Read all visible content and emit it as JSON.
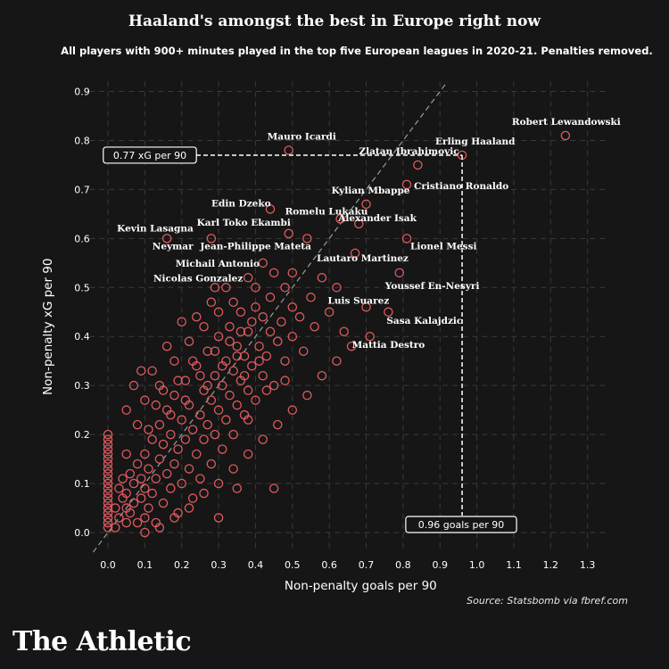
{
  "header": {
    "title": "Haaland's amongst the best in Europe right now",
    "subtitle": "All players with 900+ minutes played in the top five European leagues in 2020-21. Penalties removed."
  },
  "footer": {
    "source": "Source: Statsbomb via fbref.com",
    "brand": "The Athletic"
  },
  "colors": {
    "background": "#161616",
    "marker": "#e05a5f",
    "text": "#ffffff"
  },
  "chart_data": {
    "type": "scatter",
    "title": "Haaland's amongst the best in Europe right now",
    "xlabel": "Non-penalty goals per 90",
    "ylabel": "Non-penalty xG per 90",
    "xlim": [
      -0.05,
      1.35
    ],
    "ylim": [
      -0.04,
      0.92
    ],
    "xticks": [
      "0.0",
      "0.1",
      "0.2",
      "0.3",
      "0.4",
      "0.5",
      "0.6",
      "0.7",
      "0.8",
      "0.9",
      "1.0",
      "1.1",
      "1.2",
      "1.3"
    ],
    "yticks": [
      "0.0",
      "0.1",
      "0.2",
      "0.3",
      "0.4",
      "0.5",
      "0.6",
      "0.7",
      "0.8",
      "0.9"
    ],
    "grid": true,
    "reference_line": "y = x",
    "annotations": [
      {
        "text": "0.77 xG per 90",
        "x": 0.96,
        "y": 0.77,
        "kind": "horizontal"
      },
      {
        "text": "0.96 goals per 90",
        "x": 0.96,
        "y": 0.77,
        "kind": "vertical"
      }
    ],
    "labeled_players": [
      {
        "name": "Robert Lewandowski",
        "x": 1.24,
        "y": 0.81
      },
      {
        "name": "Erling Haaland",
        "x": 0.96,
        "y": 0.77
      },
      {
        "name": "Mauro Icardi",
        "x": 0.49,
        "y": 0.78
      },
      {
        "name": "Zlatan Ibrahimovic",
        "x": 0.84,
        "y": 0.75
      },
      {
        "name": "Cristiano Ronaldo",
        "x": 0.81,
        "y": 0.71
      },
      {
        "name": "Kylian Mbappe",
        "x": 0.7,
        "y": 0.67
      },
      {
        "name": "Edin Dzeko",
        "x": 0.44,
        "y": 0.66
      },
      {
        "name": "Romelu Lukaku",
        "x": 0.63,
        "y": 0.64
      },
      {
        "name": "Karl Toko Ekambi",
        "x": 0.49,
        "y": 0.61
      },
      {
        "name": "Alexander Isak",
        "x": 0.68,
        "y": 0.63
      },
      {
        "name": "Kevin Lasagna",
        "x": 0.16,
        "y": 0.6
      },
      {
        "name": "Neymar",
        "x": 0.28,
        "y": 0.6
      },
      {
        "name": "Jean-Philippe Mateta",
        "x": 0.54,
        "y": 0.6
      },
      {
        "name": "Lionel Messi",
        "x": 0.81,
        "y": 0.6
      },
      {
        "name": "Michail Antonio",
        "x": 0.42,
        "y": 0.55
      },
      {
        "name": "Lautaro Martinez",
        "x": 0.67,
        "y": 0.57
      },
      {
        "name": "Nicolas Gonzalez",
        "x": 0.29,
        "y": 0.5
      },
      {
        "name": "Youssef En-Nesyri",
        "x": 0.79,
        "y": 0.53
      },
      {
        "name": "Luis Suarez",
        "x": 0.7,
        "y": 0.46
      },
      {
        "name": "Sasa Kalajdzic",
        "x": 0.76,
        "y": 0.45
      },
      {
        "name": "Mattia Destro",
        "x": 0.71,
        "y": 0.4
      }
    ],
    "series": [
      {
        "values": [
          [
            0.0,
            0.01
          ],
          [
            0.0,
            0.02
          ],
          [
            0.0,
            0.03
          ],
          [
            0.0,
            0.04
          ],
          [
            0.0,
            0.05
          ],
          [
            0.0,
            0.06
          ],
          [
            0.0,
            0.07
          ],
          [
            0.0,
            0.08
          ],
          [
            0.0,
            0.09
          ],
          [
            0.0,
            0.1
          ],
          [
            0.0,
            0.11
          ],
          [
            0.0,
            0.12
          ],
          [
            0.0,
            0.13
          ],
          [
            0.0,
            0.14
          ],
          [
            0.0,
            0.15
          ],
          [
            0.0,
            0.16
          ],
          [
            0.0,
            0.17
          ],
          [
            0.0,
            0.18
          ],
          [
            0.0,
            0.19
          ],
          [
            0.0,
            0.2
          ],
          [
            0.02,
            0.01
          ],
          [
            0.03,
            0.03
          ],
          [
            0.02,
            0.05
          ],
          [
            0.04,
            0.07
          ],
          [
            0.03,
            0.09
          ],
          [
            0.04,
            0.11
          ],
          [
            0.05,
            0.02
          ],
          [
            0.05,
            0.05
          ],
          [
            0.05,
            0.08
          ],
          [
            0.06,
            0.12
          ],
          [
            0.06,
            0.04
          ],
          [
            0.07,
            0.06
          ],
          [
            0.07,
            0.1
          ],
          [
            0.08,
            0.02
          ],
          [
            0.08,
            0.14
          ],
          [
            0.09,
            0.07
          ],
          [
            0.09,
            0.11
          ],
          [
            0.1,
            0.03
          ],
          [
            0.1,
            0.16
          ],
          [
            0.1,
            0.09
          ],
          [
            0.11,
            0.05
          ],
          [
            0.11,
            0.13
          ],
          [
            0.12,
            0.19
          ],
          [
            0.12,
            0.08
          ],
          [
            0.13,
            0.11
          ],
          [
            0.13,
            0.02
          ],
          [
            0.14,
            0.15
          ],
          [
            0.14,
            0.22
          ],
          [
            0.15,
            0.06
          ],
          [
            0.15,
            0.18
          ],
          [
            0.16,
            0.12
          ],
          [
            0.16,
            0.25
          ],
          [
            0.17,
            0.09
          ],
          [
            0.17,
            0.2
          ],
          [
            0.18,
            0.14
          ],
          [
            0.18,
            0.28
          ],
          [
            0.19,
            0.04
          ],
          [
            0.19,
            0.17
          ],
          [
            0.2,
            0.23
          ],
          [
            0.2,
            0.1
          ],
          [
            0.21,
            0.19
          ],
          [
            0.21,
            0.31
          ],
          [
            0.22,
            0.13
          ],
          [
            0.22,
            0.26
          ],
          [
            0.23,
            0.07
          ],
          [
            0.23,
            0.21
          ],
          [
            0.24,
            0.16
          ],
          [
            0.24,
            0.34
          ],
          [
            0.25,
            0.24
          ],
          [
            0.25,
            0.11
          ],
          [
            0.26,
            0.29
          ],
          [
            0.26,
            0.19
          ],
          [
            0.27,
            0.22
          ],
          [
            0.27,
            0.37
          ],
          [
            0.28,
            0.14
          ],
          [
            0.28,
            0.27
          ],
          [
            0.29,
            0.32
          ],
          [
            0.29,
            0.2
          ],
          [
            0.3,
            0.25
          ],
          [
            0.3,
            0.4
          ],
          [
            0.31,
            0.17
          ],
          [
            0.31,
            0.3
          ],
          [
            0.32,
            0.35
          ],
          [
            0.32,
            0.23
          ],
          [
            0.33,
            0.28
          ],
          [
            0.33,
            0.42
          ],
          [
            0.34,
            0.2
          ],
          [
            0.34,
            0.33
          ],
          [
            0.35,
            0.26
          ],
          [
            0.35,
            0.38
          ],
          [
            0.36,
            0.31
          ],
          [
            0.36,
            0.45
          ],
          [
            0.37,
            0.24
          ],
          [
            0.37,
            0.36
          ],
          [
            0.38,
            0.41
          ],
          [
            0.38,
            0.29
          ],
          [
            0.39,
            0.34
          ],
          [
            0.4,
            0.46
          ],
          [
            0.4,
            0.27
          ],
          [
            0.41,
            0.38
          ],
          [
            0.42,
            0.32
          ],
          [
            0.42,
            0.44
          ],
          [
            0.43,
            0.36
          ],
          [
            0.44,
            0.41
          ],
          [
            0.44,
            0.48
          ],
          [
            0.45,
            0.3
          ],
          [
            0.46,
            0.39
          ],
          [
            0.47,
            0.43
          ],
          [
            0.48,
            0.35
          ],
          [
            0.48,
            0.5
          ],
          [
            0.5,
            0.4
          ],
          [
            0.5,
            0.46
          ],
          [
            0.52,
            0.44
          ],
          [
            0.53,
            0.37
          ],
          [
            0.55,
            0.48
          ],
          [
            0.56,
            0.42
          ],
          [
            0.58,
            0.52
          ],
          [
            0.6,
            0.45
          ],
          [
            0.62,
            0.5
          ],
          [
            0.64,
            0.41
          ],
          [
            0.05,
            0.16
          ],
          [
            0.08,
            0.22
          ],
          [
            0.1,
            0.27
          ],
          [
            0.12,
            0.33
          ],
          [
            0.14,
            0.3
          ],
          [
            0.16,
            0.38
          ],
          [
            0.18,
            0.35
          ],
          [
            0.2,
            0.43
          ],
          [
            0.22,
            0.39
          ],
          [
            0.24,
            0.44
          ],
          [
            0.26,
            0.42
          ],
          [
            0.28,
            0.47
          ],
          [
            0.3,
            0.45
          ],
          [
            0.32,
            0.5
          ],
          [
            0.34,
            0.47
          ],
          [
            0.36,
            0.41
          ],
          [
            0.38,
            0.52
          ],
          [
            0.4,
            0.5
          ],
          [
            0.45,
            0.53
          ],
          [
            0.5,
            0.53
          ],
          [
            0.1,
            0.0
          ],
          [
            0.14,
            0.01
          ],
          [
            0.18,
            0.03
          ],
          [
            0.22,
            0.05
          ],
          [
            0.26,
            0.08
          ],
          [
            0.3,
            0.1
          ],
          [
            0.34,
            0.13
          ],
          [
            0.38,
            0.16
          ],
          [
            0.42,
            0.19
          ],
          [
            0.46,
            0.22
          ],
          [
            0.5,
            0.25
          ],
          [
            0.54,
            0.28
          ],
          [
            0.58,
            0.32
          ],
          [
            0.62,
            0.35
          ],
          [
            0.66,
            0.38
          ],
          [
            0.45,
            0.09
          ],
          [
            0.35,
            0.09
          ],
          [
            0.3,
            0.03
          ],
          [
            0.38,
            0.23
          ],
          [
            0.48,
            0.31
          ],
          [
            0.05,
            0.25
          ],
          [
            0.07,
            0.3
          ],
          [
            0.09,
            0.33
          ],
          [
            0.11,
            0.21
          ],
          [
            0.13,
            0.26
          ],
          [
            0.15,
            0.29
          ],
          [
            0.17,
            0.24
          ],
          [
            0.19,
            0.31
          ],
          [
            0.21,
            0.27
          ],
          [
            0.23,
            0.35
          ],
          [
            0.25,
            0.32
          ],
          [
            0.27,
            0.3
          ],
          [
            0.29,
            0.37
          ],
          [
            0.31,
            0.34
          ],
          [
            0.33,
            0.39
          ],
          [
            0.35,
            0.36
          ],
          [
            0.37,
            0.32
          ],
          [
            0.39,
            0.43
          ],
          [
            0.41,
            0.35
          ],
          [
            0.43,
            0.29
          ]
        ]
      }
    ]
  }
}
